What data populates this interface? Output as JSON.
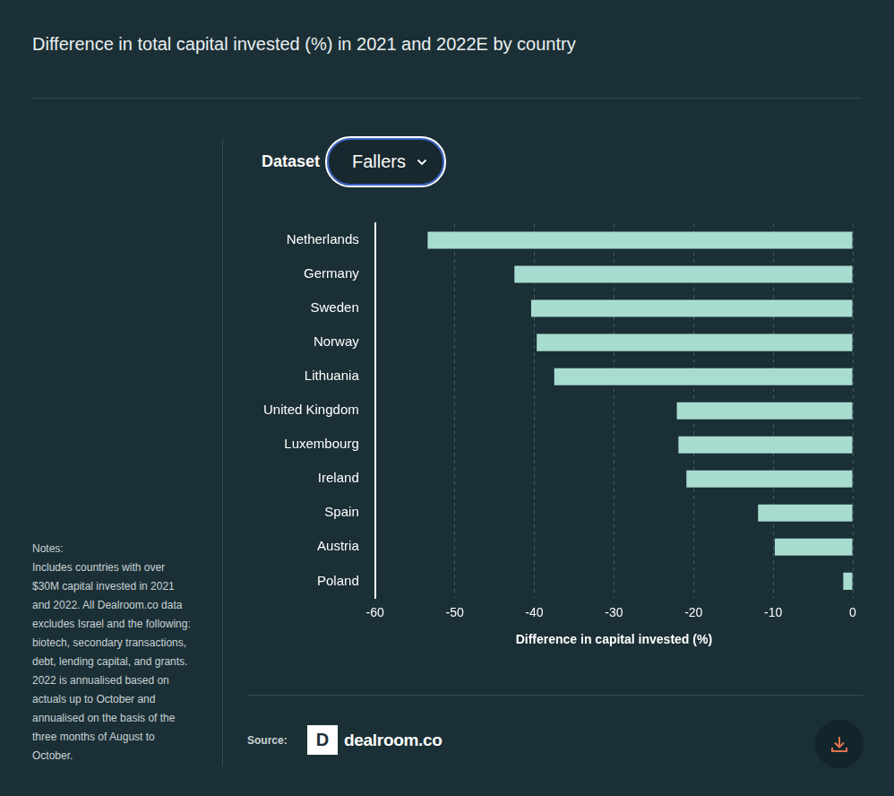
{
  "chart_data": {
    "type": "bar",
    "title": "Difference in total capital invested (%) in 2021 and 2022E by country",
    "orientation": "horizontal",
    "categories": [
      "Netherlands",
      "Germany",
      "Sweden",
      "Norway",
      "Lithuania",
      "United Kingdom",
      "Luxembourg",
      "Ireland",
      "Spain",
      "Austria",
      "Poland"
    ],
    "values": [
      -53.4,
      -42.5,
      -40.4,
      -39.7,
      -37.5,
      -22.1,
      -21.9,
      -20.9,
      -11.9,
      -9.8,
      -1.2
    ],
    "color": "#a8dcd0",
    "x_label": "Difference in capital invested (%)",
    "xlim": [
      -60,
      0
    ],
    "xticks": [
      -60,
      -50,
      -40,
      -30,
      -20,
      -10,
      0
    ],
    "grid": true
  },
  "controls": {
    "label": "Dataset",
    "selected": "Fallers"
  },
  "notes": {
    "heading": "Notes:",
    "text": "Includes countries with over $30M capital invested in 2021 and 2022. All Dealroom.co data excludes Israel and the following: biotech, secondary transactions, debt, lending capital, and grants. 2022 is annualised based on actuals up to October and annualised on the basis of the three months of August to October."
  },
  "source": {
    "label": "Source:",
    "name": "dealroom.co",
    "logo_mark": "D"
  }
}
